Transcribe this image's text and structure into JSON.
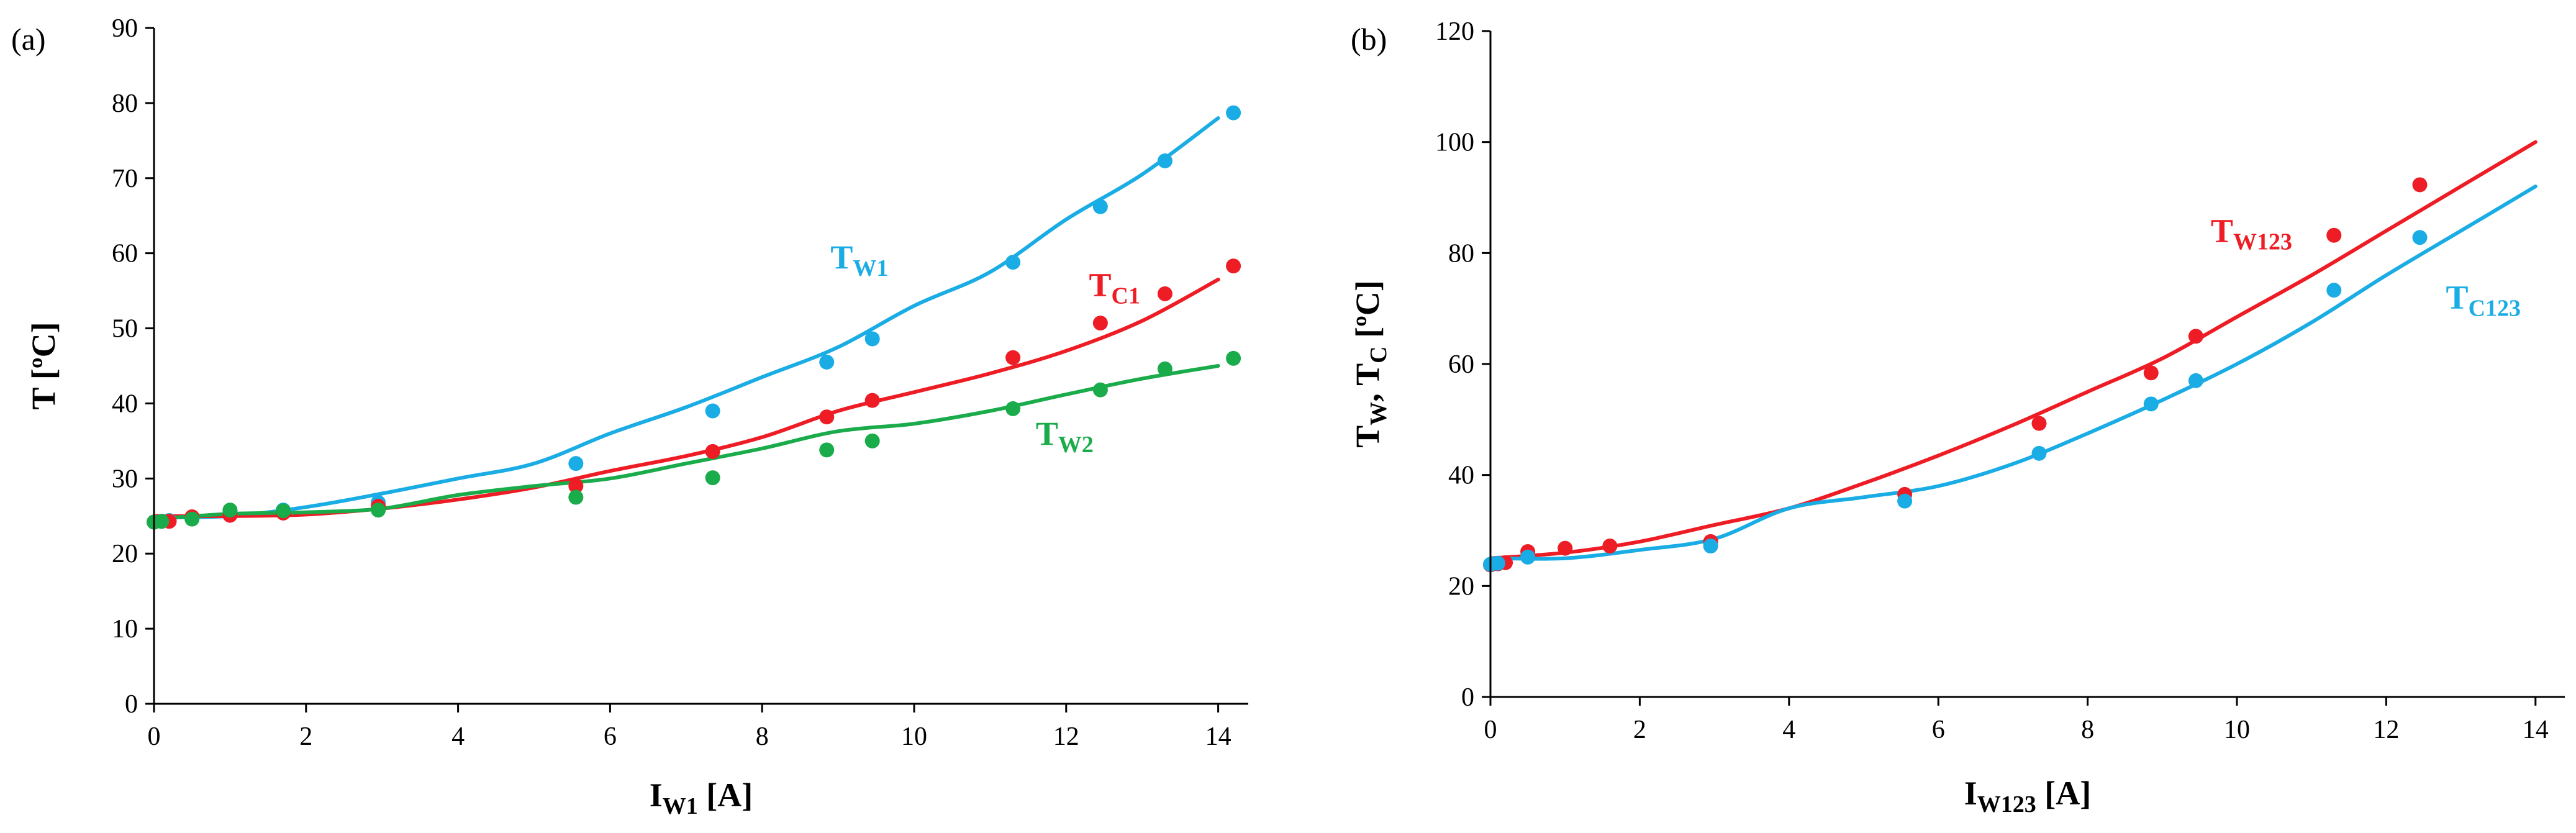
{
  "chart_data": [
    {
      "type": "scatter",
      "panel_label": "(a)",
      "xlabel": {
        "main": "I",
        "sub": "W1",
        "unit": " [A]"
      },
      "ylabel": "T [ºC]",
      "xlim": [
        0,
        14.4
      ],
      "ylim": [
        0,
        90
      ],
      "xticks": [
        "0",
        "2",
        "4",
        "6",
        "8",
        "10",
        "12",
        "14"
      ],
      "yticks": [
        "0",
        "10",
        "20",
        "30",
        "40",
        "50",
        "60",
        "70",
        "80",
        "90"
      ],
      "series": [
        {
          "key": "TW1",
          "label_main": "T",
          "label_sub": "W1",
          "color": "#1AACE4",
          "points": [
            [
              0,
              24.2
            ],
            [
              0.1,
              24.3
            ],
            [
              0.2,
              24.4
            ],
            [
              0.5,
              24.8
            ],
            [
              1.0,
              25.7
            ],
            [
              1.7,
              25.8
            ],
            [
              2.95,
              26.8
            ],
            [
              5.55,
              32.0
            ],
            [
              7.35,
              39.0
            ],
            [
              8.85,
              45.5
            ],
            [
              9.45,
              48.6
            ],
            [
              11.3,
              58.8
            ],
            [
              12.45,
              66.2
            ],
            [
              13.3,
              72.3
            ],
            [
              14.2,
              78.7
            ]
          ],
          "line": [
            [
              0,
              24.8
            ],
            [
              1,
              25.0
            ],
            [
              2,
              26.2
            ],
            [
              3,
              28.0
            ],
            [
              4,
              30.0
            ],
            [
              5,
              32.0
            ],
            [
              6,
              36.0
            ],
            [
              7,
              39.5
            ],
            [
              8,
              43.5
            ],
            [
              9,
              47.5
            ],
            [
              10,
              53.0
            ],
            [
              11,
              57.5
            ],
            [
              12,
              64.5
            ],
            [
              13,
              70.5
            ],
            [
              14,
              78.0
            ]
          ],
          "label_pos": [
            8.9,
            58.0
          ]
        },
        {
          "key": "TC1",
          "label_main": "T",
          "label_sub": "C1",
          "color": "#EE1C24",
          "points": [
            [
              0,
              24.2
            ],
            [
              0.1,
              24.3
            ],
            [
              0.2,
              24.3
            ],
            [
              0.5,
              24.9
            ],
            [
              1.0,
              25.1
            ],
            [
              1.7,
              25.4
            ],
            [
              2.95,
              26.3
            ],
            [
              5.55,
              29.0
            ],
            [
              7.35,
              33.6
            ],
            [
              8.85,
              38.2
            ],
            [
              9.45,
              40.4
            ],
            [
              11.3,
              46.1
            ],
            [
              12.45,
              50.7
            ],
            [
              13.3,
              54.6
            ],
            [
              14.2,
              58.3
            ]
          ],
          "line": [
            [
              0,
              25.0
            ],
            [
              1,
              25.0
            ],
            [
              2,
              25.2
            ],
            [
              3,
              26.0
            ],
            [
              4,
              27.2
            ],
            [
              5,
              28.8
            ],
            [
              6,
              31.0
            ],
            [
              7,
              33.0
            ],
            [
              8,
              35.5
            ],
            [
              9,
              39.0
            ],
            [
              10,
              41.5
            ],
            [
              11,
              44.0
            ],
            [
              12,
              47.0
            ],
            [
              13,
              51.0
            ],
            [
              14,
              56.5
            ]
          ],
          "label_pos": [
            12.3,
            54.3
          ]
        },
        {
          "key": "TW2",
          "label_main": "T",
          "label_sub": "W2",
          "color": "#1AAB4B",
          "points": [
            [
              0,
              24.2
            ],
            [
              0.1,
              24.3
            ],
            [
              0.5,
              24.6
            ],
            [
              1.0,
              25.8
            ],
            [
              1.7,
              25.7
            ],
            [
              2.95,
              25.8
            ],
            [
              5.55,
              27.5
            ],
            [
              7.35,
              30.1
            ],
            [
              8.85,
              33.8
            ],
            [
              9.45,
              35.0
            ],
            [
              11.3,
              39.3
            ],
            [
              12.45,
              41.8
            ],
            [
              13.3,
              44.6
            ],
            [
              14.2,
              46.0
            ]
          ],
          "line": [
            [
              0,
              24.6
            ],
            [
              1,
              25.3
            ],
            [
              2,
              25.5
            ],
            [
              3,
              26.0
            ],
            [
              4,
              27.8
            ],
            [
              5,
              29.0
            ],
            [
              6,
              30.0
            ],
            [
              7,
              32.0
            ],
            [
              8,
              34.0
            ],
            [
              9,
              36.3
            ],
            [
              10,
              37.3
            ],
            [
              11,
              39.0
            ],
            [
              12,
              41.2
            ],
            [
              13,
              43.3
            ],
            [
              14,
              45.0
            ]
          ],
          "label_pos": [
            11.6,
            34.5
          ]
        }
      ]
    },
    {
      "type": "scatter",
      "panel_label": "(b)",
      "xlabel": {
        "main": "I",
        "sub": "W123",
        "unit": " [A]"
      },
      "ylabel_parts": [
        "T",
        "W",
        ", T",
        "C",
        " [ºC]"
      ],
      "xlim": [
        0,
        14.4
      ],
      "ylim": [
        0,
        120
      ],
      "xticks": [
        "0",
        "2",
        "4",
        "6",
        "8",
        "10",
        "12",
        "14"
      ],
      "yticks": [
        "0",
        "20",
        "40",
        "60",
        "80",
        "100",
        "120"
      ],
      "series": [
        {
          "key": "TW123",
          "label_main": "T",
          "label_sub": "W123",
          "color": "#EE1C24",
          "points": [
            [
              0,
              23.8
            ],
            [
              0.1,
              24.0
            ],
            [
              0.2,
              24.2
            ],
            [
              0.5,
              25.3
            ],
            [
              0.5,
              26.2
            ],
            [
              1.0,
              26.8
            ],
            [
              1.6,
              27.2
            ],
            [
              2.95,
              28.0
            ],
            [
              5.55,
              36.5
            ],
            [
              7.35,
              49.3
            ],
            [
              8.85,
              58.4
            ],
            [
              9.45,
              65.0
            ],
            [
              11.3,
              83.2
            ],
            [
              12.45,
              92.3
            ]
          ],
          "line": [
            [
              0,
              25.0
            ],
            [
              1,
              26.0
            ],
            [
              2,
              28.0
            ],
            [
              3,
              31.0
            ],
            [
              4,
              34.0
            ],
            [
              5,
              38.5
            ],
            [
              6,
              43.5
            ],
            [
              7,
              49.0
            ],
            [
              8,
              55.0
            ],
            [
              9,
              61.0
            ],
            [
              10,
              68.5
            ],
            [
              11,
              76.0
            ],
            [
              12,
              84.0
            ],
            [
              13,
              92.0
            ],
            [
              14,
              100.0
            ]
          ],
          "label_pos": [
            9.65,
            82.0
          ]
        },
        {
          "key": "TC123",
          "label_main": "T",
          "label_sub": "C123",
          "color": "#1AACE4",
          "points": [
            [
              0,
              23.9
            ],
            [
              0.1,
              24.1
            ],
            [
              0.5,
              25.2
            ],
            [
              2.95,
              27.2
            ],
            [
              5.55,
              35.3
            ],
            [
              7.35,
              43.9
            ],
            [
              8.85,
              52.8
            ],
            [
              9.45,
              57.0
            ],
            [
              11.3,
              73.3
            ],
            [
              12.45,
              82.8
            ]
          ],
          "line": [
            [
              0,
              25.0
            ],
            [
              1,
              25.0
            ],
            [
              2,
              26.5
            ],
            [
              3,
              28.5
            ],
            [
              4,
              34.0
            ],
            [
              5,
              36.0
            ],
            [
              6,
              38.0
            ],
            [
              7,
              42.0
            ],
            [
              8,
              47.5
            ],
            [
              9,
              53.5
            ],
            [
              10,
              60.0
            ],
            [
              11,
              67.5
            ],
            [
              12,
              76.0
            ],
            [
              13,
              84.0
            ],
            [
              14,
              92.0
            ]
          ],
          "label_pos": [
            12.8,
            70.0
          ]
        }
      ]
    }
  ]
}
